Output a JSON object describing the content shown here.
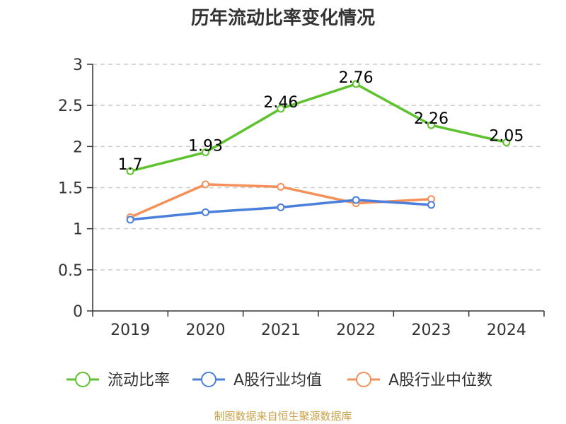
{
  "chart_data": {
    "type": "line",
    "title": "历年流动比率变化情况",
    "categories": [
      "2019",
      "2020",
      "2021",
      "2022",
      "2023",
      "2024"
    ],
    "ylim": [
      0,
      3
    ],
    "yticks": [
      "0",
      "0.5",
      "1",
      "1.5",
      "2",
      "2.5",
      "3"
    ],
    "grid": true,
    "legend_position": "bottom",
    "series": [
      {
        "name": "流动比率",
        "color": "#5ec22e",
        "values": [
          1.7,
          1.93,
          2.46,
          2.76,
          2.26,
          2.05
        ],
        "data_labels": [
          "1.7",
          "1.93",
          "2.46",
          "2.76",
          "2.26",
          "2.05"
        ]
      },
      {
        "name": "A股行业均值",
        "color": "#4a7fdc",
        "values": [
          1.11,
          1.2,
          1.26,
          1.35,
          1.29,
          null
        ]
      },
      {
        "name": "A股行业中位数",
        "color": "#f5905a",
        "values": [
          1.14,
          1.54,
          1.51,
          1.31,
          1.36,
          null
        ]
      }
    ]
  },
  "footer": {
    "source": "制图数据来自恒生聚源数据库"
  }
}
